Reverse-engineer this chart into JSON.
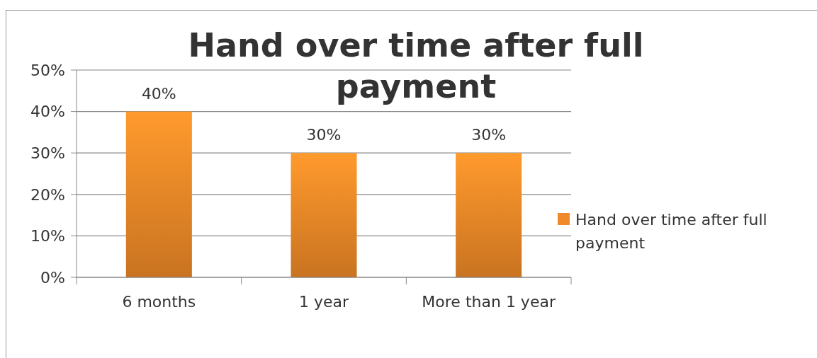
{
  "chart_data": {
    "type": "bar",
    "title": "Hand over time after full payment",
    "categories": [
      "6 months",
      "1 year",
      "More than 1 year"
    ],
    "series": [
      {
        "name": "Hand over time after full payment",
        "color": "#f08a28",
        "values": [
          40,
          30,
          30
        ],
        "value_labels": [
          "40%",
          "30%",
          "30%"
        ]
      }
    ],
    "ylim": [
      0,
      50
    ],
    "yticks": [
      {
        "value": 0,
        "label": "0%"
      },
      {
        "value": 10,
        "label": "10%"
      },
      {
        "value": 20,
        "label": "20%"
      },
      {
        "value": 30,
        "label": "30%"
      },
      {
        "value": 40,
        "label": "40%"
      },
      {
        "value": 50,
        "label": "50%"
      }
    ],
    "grid": "y",
    "legend": "right"
  }
}
